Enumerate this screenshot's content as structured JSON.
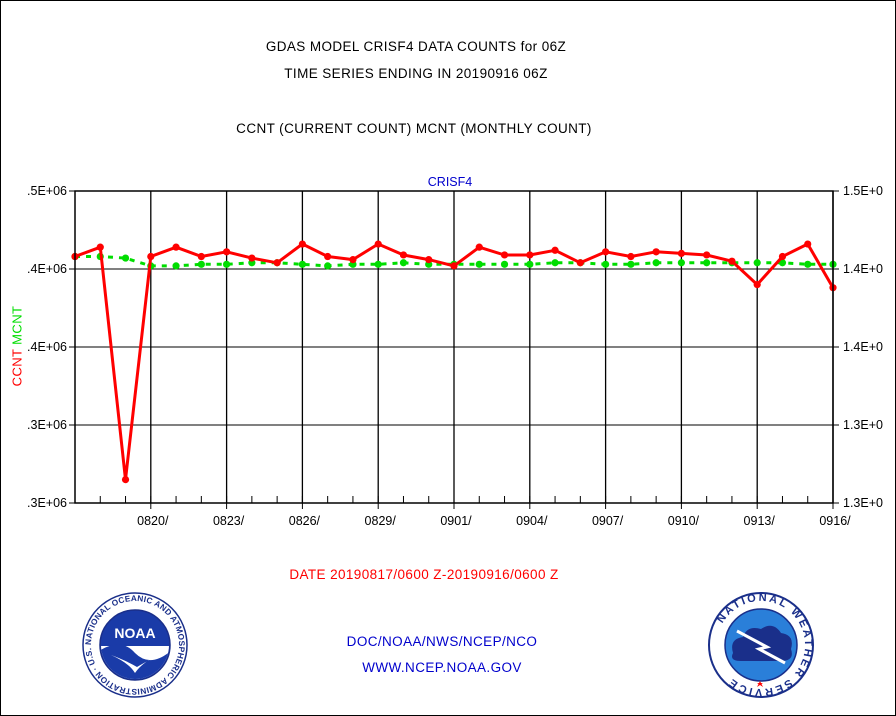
{
  "header": {
    "title_line1": "GDAS MODEL CRISF4 DATA COUNTS for 06Z",
    "title_line2": "TIME SERIES ENDING IN 20190916 06Z",
    "subtitle": "CCNT (CURRENT COUNT) MCNT (MONTHLY COUNT)"
  },
  "footer": {
    "date_range": "DATE 20190817/0600 Z-20190916/0600 Z",
    "org": "DOC/NOAA/NWS/NCEP/NCO",
    "url": "WWW.NCEP.NOAA.GOV"
  },
  "logos": {
    "noaa_text": "NOAA",
    "noaa_ring": "NATIONAL OCEANIC AND ATMOSPHERIC ADMINISTRATION · U.S. DEPARTMENT OF COMMERCE ·",
    "nws_ring": "NATIONAL WEATHER SERVICE"
  },
  "colors": {
    "ccnt": "#ff0000",
    "mcnt": "#00dd00",
    "grid": "#000000",
    "panel_label": "#0000cc"
  },
  "chart_data": {
    "type": "line",
    "title": "CRISF4",
    "ylabel_left_parts": [
      "CCNT",
      "MCNT"
    ],
    "yticks_left": [
      ".3E+06",
      ".3E+06",
      ".4E+06",
      ".4E+06",
      ".5E+06"
    ],
    "yticks_right": [
      "1.3E+0",
      "1.3E+0",
      "1.4E+0",
      "1.4E+0",
      "1.5E+0"
    ],
    "ylim": [
      0.3,
      0.5
    ],
    "x_ticks": [
      "0820/",
      "0823/",
      "0826/",
      "0829/",
      "0901/",
      "0904/",
      "0907/",
      "0910/",
      "0913/",
      "0916/"
    ],
    "x_tick_positions": [
      3,
      6,
      9,
      12,
      15,
      18,
      21,
      24,
      27,
      30
    ],
    "xlim": [
      0,
      30
    ],
    "grid": true,
    "legend": "none",
    "series": [
      {
        "name": "CCNT",
        "x": [
          0,
          1,
          2,
          3,
          4,
          5,
          6,
          7,
          8,
          9,
          10,
          11,
          12,
          13,
          14,
          15,
          16,
          17,
          18,
          19,
          20,
          21,
          22,
          23,
          24,
          25,
          26,
          27,
          28,
          29,
          30
        ],
        "values": [
          0.458,
          0.464,
          0.315,
          0.458,
          0.464,
          0.458,
          0.461,
          0.457,
          0.454,
          0.466,
          0.458,
          0.456,
          0.466,
          0.459,
          0.456,
          0.452,
          0.464,
          0.459,
          0.459,
          0.462,
          0.454,
          0.461,
          0.458,
          0.461,
          0.46,
          0.459,
          0.455,
          0.44,
          0.458,
          0.466,
          0.438
        ]
      },
      {
        "name": "MCNT",
        "x": [
          0,
          1,
          2,
          3,
          4,
          5,
          6,
          7,
          8,
          9,
          10,
          11,
          12,
          13,
          14,
          15,
          16,
          17,
          18,
          19,
          20,
          21,
          22,
          23,
          24,
          25,
          26,
          27,
          28,
          29,
          30
        ],
        "values": [
          0.458,
          0.458,
          0.457,
          0.452,
          0.452,
          0.453,
          0.453,
          0.454,
          0.454,
          0.453,
          0.452,
          0.453,
          0.453,
          0.454,
          0.453,
          0.453,
          0.453,
          0.453,
          0.453,
          0.454,
          0.454,
          0.453,
          0.453,
          0.454,
          0.454,
          0.454,
          0.454,
          0.454,
          0.454,
          0.453,
          0.453
        ]
      }
    ]
  }
}
